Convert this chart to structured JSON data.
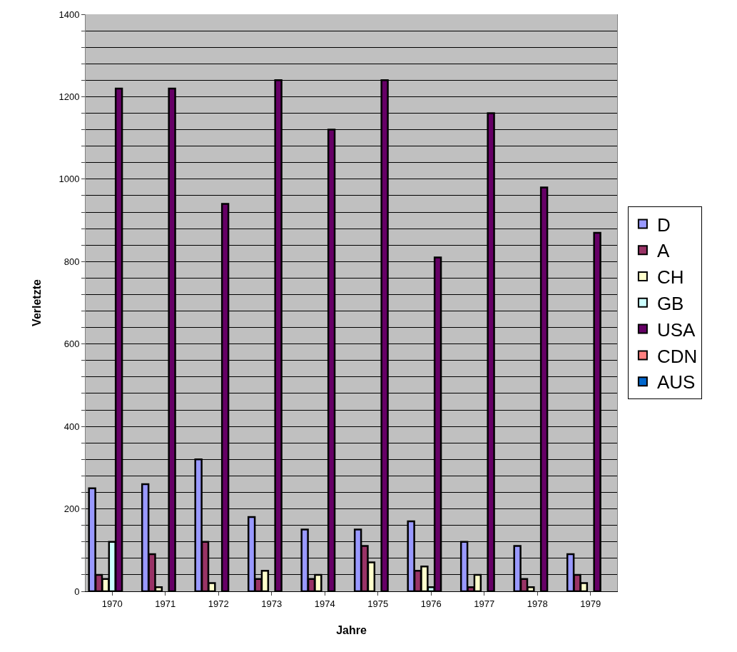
{
  "chart_data": {
    "type": "bar",
    "xlabel": "Jahre",
    "ylabel": "Verletzte",
    "categories": [
      "1970",
      "1971",
      "1972",
      "1973",
      "1974",
      "1975",
      "1976",
      "1977",
      "1978",
      "1979"
    ],
    "series": [
      {
        "name": "D",
        "color": "#9999ff",
        "values": [
          250,
          260,
          320,
          180,
          150,
          150,
          170,
          120,
          110,
          90
        ]
      },
      {
        "name": "A",
        "color": "#993366",
        "values": [
          40,
          90,
          120,
          30,
          30,
          110,
          50,
          10,
          30,
          40
        ]
      },
      {
        "name": "CH",
        "color": "#ffffcc",
        "values": [
          30,
          10,
          20,
          50,
          40,
          70,
          60,
          40,
          10,
          20
        ]
      },
      {
        "name": "GB",
        "color": "#ccffff",
        "values": [
          120,
          null,
          null,
          null,
          null,
          null,
          10,
          null,
          null,
          null
        ]
      },
      {
        "name": "USA",
        "color": "#660066",
        "values": [
          1220,
          1220,
          940,
          1240,
          1120,
          1240,
          810,
          1160,
          980,
          870
        ]
      },
      {
        "name": "CDN",
        "color": "#ff8080",
        "values": [
          null,
          null,
          null,
          null,
          null,
          null,
          null,
          null,
          null,
          null
        ]
      },
      {
        "name": "AUS",
        "color": "#0066cc",
        "values": [
          null,
          null,
          null,
          null,
          null,
          null,
          null,
          null,
          null,
          null
        ]
      }
    ],
    "ylim": [
      0,
      1400
    ],
    "yticks": [
      0,
      {
        "value": 40,
        "label": null
      },
      {
        "value": 80,
        "label": null
      },
      {
        "value": 120,
        "label": null
      },
      {
        "value": 160,
        "label": null
      },
      200,
      {
        "value": 240,
        "label": null
      },
      {
        "value": 280,
        "label": null
      },
      {
        "value": 320,
        "label": null
      },
      {
        "value": 360,
        "label": null
      },
      400,
      {
        "value": 440,
        "label": null
      },
      {
        "value": 480,
        "label": null
      },
      {
        "value": 520,
        "label": null
      },
      {
        "value": 560,
        "label": null
      },
      600,
      {
        "value": 640,
        "label": null
      },
      {
        "value": 680,
        "label": null
      },
      {
        "value": 720,
        "label": null
      },
      {
        "value": 760,
        "label": null
      },
      800,
      {
        "value": 840,
        "label": null
      },
      {
        "value": 880,
        "label": null
      },
      {
        "value": 920,
        "label": null
      },
      {
        "value": 960,
        "label": null
      },
      1000,
      {
        "value": 1040,
        "label": null
      },
      {
        "value": 1080,
        "label": null
      },
      {
        "value": 1120,
        "label": null
      },
      {
        "value": 1160,
        "label": null
      },
      1200,
      {
        "value": 1240,
        "label": null
      },
      {
        "value": 1280,
        "label": null
      },
      {
        "value": 1320,
        "label": null
      },
      {
        "value": 1360,
        "label": null
      },
      1400
    ],
    "grid": "y",
    "legend": "right"
  }
}
